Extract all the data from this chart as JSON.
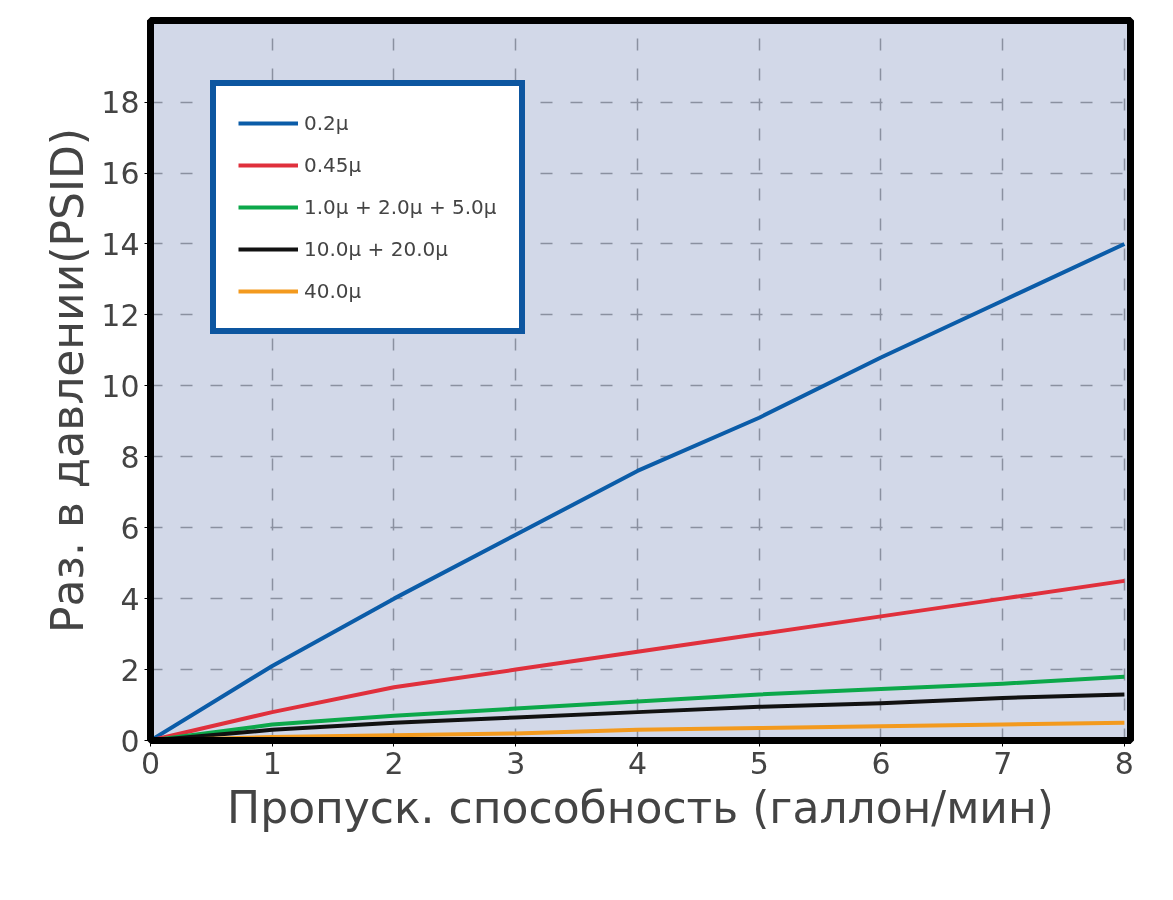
{
  "chart_data": {
    "type": "line",
    "xlabel": "Пропуск. способность (галлон/мин)",
    "ylabel": "Раз. в давлении(PSID)",
    "xlim": [
      0,
      8.05
    ],
    "ylim": [
      0,
      20.3
    ],
    "xticks": [
      0,
      1,
      2,
      3,
      4,
      5,
      6,
      7,
      8
    ],
    "yticks": [
      0,
      2,
      4,
      6,
      8,
      10,
      12,
      14,
      16,
      18
    ],
    "grid": true,
    "legend": "top left",
    "line_style": "solid",
    "marker": "none",
    "x": [
      0,
      1,
      2,
      3,
      4,
      5,
      6,
      7,
      8
    ],
    "series": [
      {
        "name": "0.2μ",
        "color": "#0b5ca8",
        "values": [
          0,
          2.1,
          4.0,
          5.8,
          7.6,
          9.1,
          10.8,
          12.4,
          14.0
        ]
      },
      {
        "name": "0.45μ",
        "color": "#e0303c",
        "values": [
          0,
          0.8,
          1.5,
          2.0,
          2.5,
          3.0,
          3.5,
          4.0,
          4.5
        ]
      },
      {
        "name": "1.0μ + 2.0μ + 5.0μ",
        "color": "#0ca84a",
        "values": [
          0,
          0.45,
          0.7,
          0.9,
          1.1,
          1.3,
          1.45,
          1.6,
          1.8
        ]
      },
      {
        "name": "10.0μ + 20.0μ",
        "color": "#111111",
        "values": [
          0,
          0.3,
          0.5,
          0.65,
          0.8,
          0.95,
          1.05,
          1.2,
          1.3
        ]
      },
      {
        "name": "40.0μ",
        "color": "#f39a1e",
        "values": [
          0,
          0.1,
          0.15,
          0.2,
          0.3,
          0.35,
          0.4,
          0.45,
          0.5
        ]
      }
    ]
  }
}
